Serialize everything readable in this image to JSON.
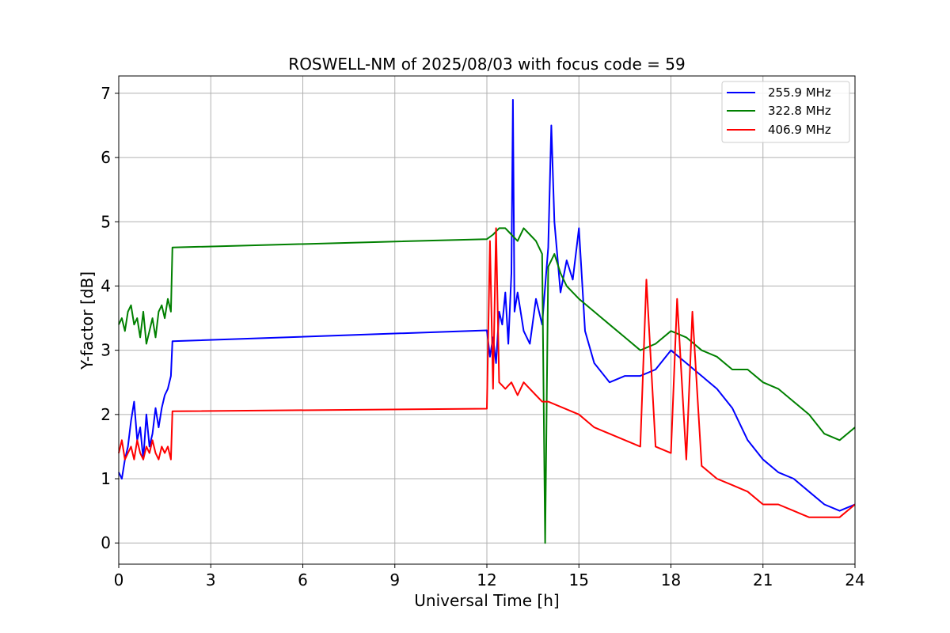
{
  "chart_data": {
    "type": "line",
    "title": "ROSWELL-NM of 2025/08/03 with focus code = 59",
    "xlabel": "Universal Time [h]",
    "ylabel": "Y-factor [dB]",
    "xlim": [
      0,
      24
    ],
    "ylim": [
      -0.33,
      7.27
    ],
    "xticks": [
      0,
      3,
      6,
      9,
      12,
      15,
      18,
      21,
      24
    ],
    "yticks": [
      0,
      1,
      2,
      3,
      4,
      5,
      6,
      7
    ],
    "grid": true,
    "legend_position": "top-right",
    "series": [
      {
        "name": "255.9 MHz",
        "color": "#0000ff",
        "x": [
          0,
          0.1,
          0.2,
          0.3,
          0.4,
          0.5,
          0.6,
          0.7,
          0.8,
          0.9,
          1.0,
          1.1,
          1.2,
          1.3,
          1.4,
          1.5,
          1.6,
          1.7,
          1.75,
          12.0,
          12.1,
          12.2,
          12.3,
          12.4,
          12.5,
          12.6,
          12.7,
          12.8,
          12.85,
          12.9,
          13.0,
          13.2,
          13.4,
          13.6,
          13.8,
          14.0,
          14.1,
          14.2,
          14.4,
          14.6,
          14.8,
          15.0,
          15.2,
          15.5,
          16.0,
          16.5,
          17.0,
          17.5,
          18.0,
          18.5,
          19.0,
          19.5,
          20.0,
          20.5,
          21.0,
          21.5,
          22.0,
          22.5,
          23.0,
          23.5,
          24.0
        ],
        "y": [
          1.1,
          1.0,
          1.3,
          1.5,
          1.9,
          2.2,
          1.6,
          1.8,
          1.3,
          2.0,
          1.5,
          1.7,
          2.1,
          1.8,
          2.1,
          2.3,
          2.4,
          2.6,
          3.14,
          3.31,
          2.9,
          3.2,
          2.8,
          3.6,
          3.4,
          3.9,
          3.1,
          4.2,
          6.9,
          3.6,
          3.9,
          3.3,
          3.1,
          3.8,
          3.4,
          4.6,
          6.5,
          5.0,
          3.9,
          4.4,
          4.1,
          4.9,
          3.3,
          2.8,
          2.5,
          2.6,
          2.6,
          2.7,
          3.0,
          2.8,
          2.6,
          2.4,
          2.1,
          1.6,
          1.3,
          1.1,
          1.0,
          0.8,
          0.6,
          0.5,
          0.6
        ]
      },
      {
        "name": "322.8 MHz",
        "color": "#008000",
        "x": [
          0,
          0.1,
          0.2,
          0.3,
          0.4,
          0.5,
          0.6,
          0.7,
          0.8,
          0.9,
          1.0,
          1.1,
          1.2,
          1.3,
          1.4,
          1.5,
          1.6,
          1.7,
          1.75,
          12.0,
          12.2,
          12.4,
          12.6,
          12.8,
          13.0,
          13.2,
          13.4,
          13.6,
          13.8,
          13.9,
          14.0,
          14.2,
          14.4,
          14.6,
          14.8,
          15.0,
          15.5,
          16.0,
          16.5,
          17.0,
          17.5,
          18.0,
          18.5,
          19.0,
          19.5,
          20.0,
          20.5,
          21.0,
          21.5,
          22.0,
          22.5,
          23.0,
          23.5,
          24.0
        ],
        "y": [
          3.4,
          3.5,
          3.3,
          3.6,
          3.7,
          3.4,
          3.5,
          3.2,
          3.6,
          3.1,
          3.3,
          3.5,
          3.2,
          3.6,
          3.7,
          3.5,
          3.8,
          3.6,
          4.6,
          4.73,
          4.8,
          4.9,
          4.9,
          4.8,
          4.7,
          4.9,
          4.8,
          4.7,
          4.5,
          0.0,
          4.3,
          4.5,
          4.2,
          4.0,
          3.9,
          3.8,
          3.6,
          3.4,
          3.2,
          3.0,
          3.1,
          3.3,
          3.2,
          3.0,
          2.9,
          2.7,
          2.7,
          2.5,
          2.4,
          2.2,
          2.0,
          1.7,
          1.6,
          1.8
        ]
      },
      {
        "name": "406.9 MHz",
        "color": "#ff0000",
        "x": [
          0,
          0.1,
          0.2,
          0.3,
          0.4,
          0.5,
          0.6,
          0.7,
          0.8,
          0.9,
          1.0,
          1.1,
          1.2,
          1.3,
          1.4,
          1.5,
          1.6,
          1.7,
          1.75,
          12.0,
          12.1,
          12.2,
          12.3,
          12.4,
          12.6,
          12.8,
          13.0,
          13.2,
          13.4,
          13.6,
          13.8,
          14.0,
          14.5,
          15.0,
          15.5,
          16.0,
          16.5,
          17.0,
          17.2,
          17.5,
          18.0,
          18.2,
          18.5,
          18.7,
          19.0,
          19.5,
          20.0,
          20.5,
          21.0,
          21.5,
          22.0,
          22.5,
          23.0,
          23.5,
          24.0
        ],
        "y": [
          1.4,
          1.6,
          1.3,
          1.4,
          1.5,
          1.3,
          1.6,
          1.4,
          1.3,
          1.5,
          1.4,
          1.6,
          1.4,
          1.3,
          1.5,
          1.4,
          1.5,
          1.3,
          2.05,
          2.09,
          4.7,
          2.4,
          4.9,
          2.5,
          2.4,
          2.5,
          2.3,
          2.5,
          2.4,
          2.3,
          2.2,
          2.2,
          2.1,
          2.0,
          1.8,
          1.7,
          1.6,
          1.5,
          4.1,
          1.5,
          1.4,
          3.8,
          1.3,
          3.6,
          1.2,
          1.0,
          0.9,
          0.8,
          0.6,
          0.6,
          0.5,
          0.4,
          0.4,
          0.4,
          0.6
        ]
      }
    ]
  }
}
